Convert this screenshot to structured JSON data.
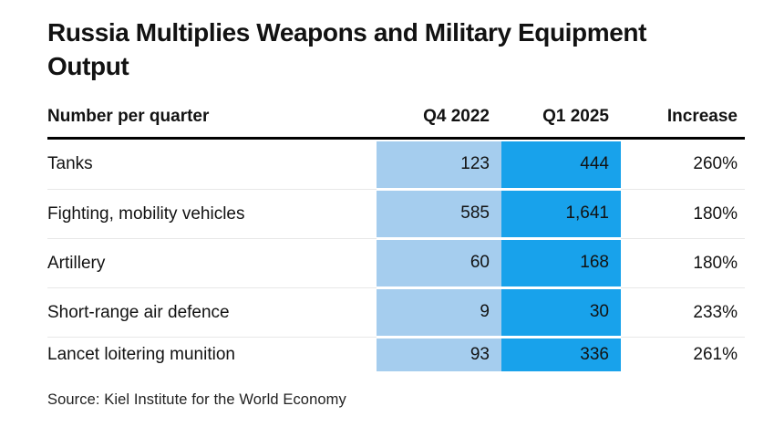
{
  "title": {
    "line1": "Russia Multiplies Weapons and Military Equipment",
    "line2": "Output"
  },
  "table": {
    "header": {
      "label": "Number per quarter",
      "q4_2022": "Q4 2022",
      "q1_2025": "Q1 2025",
      "increase": "Increase"
    },
    "rows": [
      {
        "label": "Tanks",
        "q4_2022": "123",
        "q1_2025": "444",
        "increase": "260%"
      },
      {
        "label": "Fighting, mobility vehicles",
        "q4_2022": "585",
        "q1_2025": "1,641",
        "increase": "180%"
      },
      {
        "label": "Artillery",
        "q4_2022": "60",
        "q1_2025": "168",
        "increase": "180%"
      },
      {
        "label": "Short-range air defence",
        "q4_2022": "9",
        "q1_2025": "30",
        "increase": "233%"
      },
      {
        "label": "Lancet loitering munition",
        "q4_2022": "93",
        "q1_2025": "336",
        "increase": "261%"
      }
    ]
  },
  "source": "Source: Kiel Institute for the World Economy",
  "colors": {
    "q4_cell": "#a5cdee",
    "q1_cell": "#18a2eb",
    "header_rule": "#000000",
    "row_separator": "#e8e8e8",
    "text": "#121212"
  },
  "chart_data": {
    "type": "table",
    "title": "Russia Multiplies Weapons and Military Equipment Output",
    "unit_label": "Number per quarter",
    "columns": [
      "Number per quarter",
      "Q4 2022",
      "Q1 2025",
      "Increase"
    ],
    "rows": [
      {
        "category": "Tanks",
        "q4_2022": 123,
        "q1_2025": 444,
        "increase_pct": 260
      },
      {
        "category": "Fighting, mobility vehicles",
        "q4_2022": 585,
        "q1_2025": 1641,
        "increase_pct": 180
      },
      {
        "category": "Artillery",
        "q4_2022": 60,
        "q1_2025": 168,
        "increase_pct": 180
      },
      {
        "category": "Short-range air defence",
        "q4_2022": 9,
        "q1_2025": 30,
        "increase_pct": 233
      },
      {
        "category": "Lancet loitering munition",
        "q4_2022": 93,
        "q1_2025": 336,
        "increase_pct": 261
      }
    ],
    "source": "Source: Kiel Institute for the World Economy",
    "highlight_colors": {
      "q4_2022": "#a5cdee",
      "q1_2025": "#18a2eb"
    }
  }
}
